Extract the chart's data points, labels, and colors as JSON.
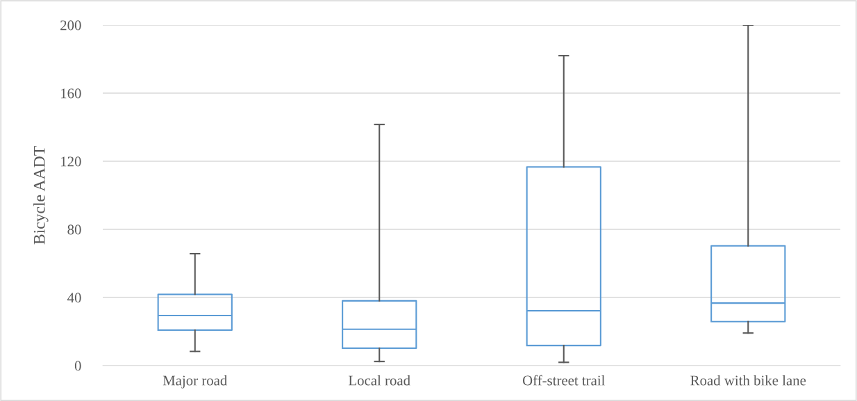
{
  "chart_data": {
    "type": "box",
    "ylabel": "Bicycle AADT",
    "categories": [
      "Major road",
      "Local road",
      "Off-street trail",
      "Road with bike lane"
    ],
    "boxes": [
      {
        "low": 8.3,
        "q1": 20.8,
        "median": 29.4,
        "q3": 41.8,
        "high": 65.7
      },
      {
        "low": 2.4,
        "q1": 10.2,
        "median": 21.3,
        "q3": 38,
        "high": 141.6
      },
      {
        "low": 1.9,
        "q1": 11.8,
        "median": 32.2,
        "q3": 116.6,
        "high": 182
      },
      {
        "low": 19.1,
        "q1": 25.8,
        "median": 36.7,
        "q3": 70.3,
        "high": 200
      }
    ],
    "color": "#5b9bd5",
    "ylim": [
      0,
      200
    ],
    "yticks": [
      0,
      40,
      80,
      120,
      160,
      200
    ],
    "grid": "y"
  }
}
